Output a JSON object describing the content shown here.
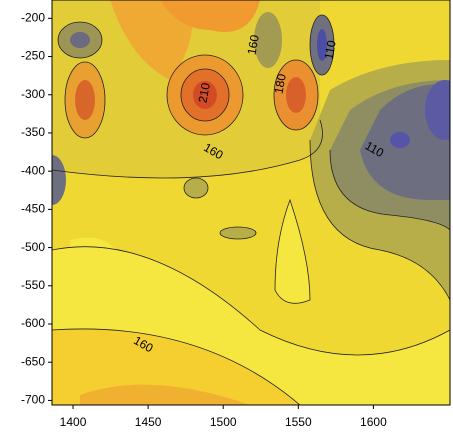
{
  "chart_data": {
    "type": "contour",
    "xlim": [
      1386,
      1651
    ],
    "xticks": [
      1400,
      1450,
      1500,
      1550,
      1600
    ],
    "ylim": [
      -706,
      -176
    ],
    "yticks": [
      -200,
      -250,
      -300,
      -350,
      -400,
      -450,
      -500,
      -550,
      -600,
      -650,
      -700
    ],
    "contour_labels": [
      210,
      160,
      180,
      110,
      160,
      110,
      160
    ]
  }
}
